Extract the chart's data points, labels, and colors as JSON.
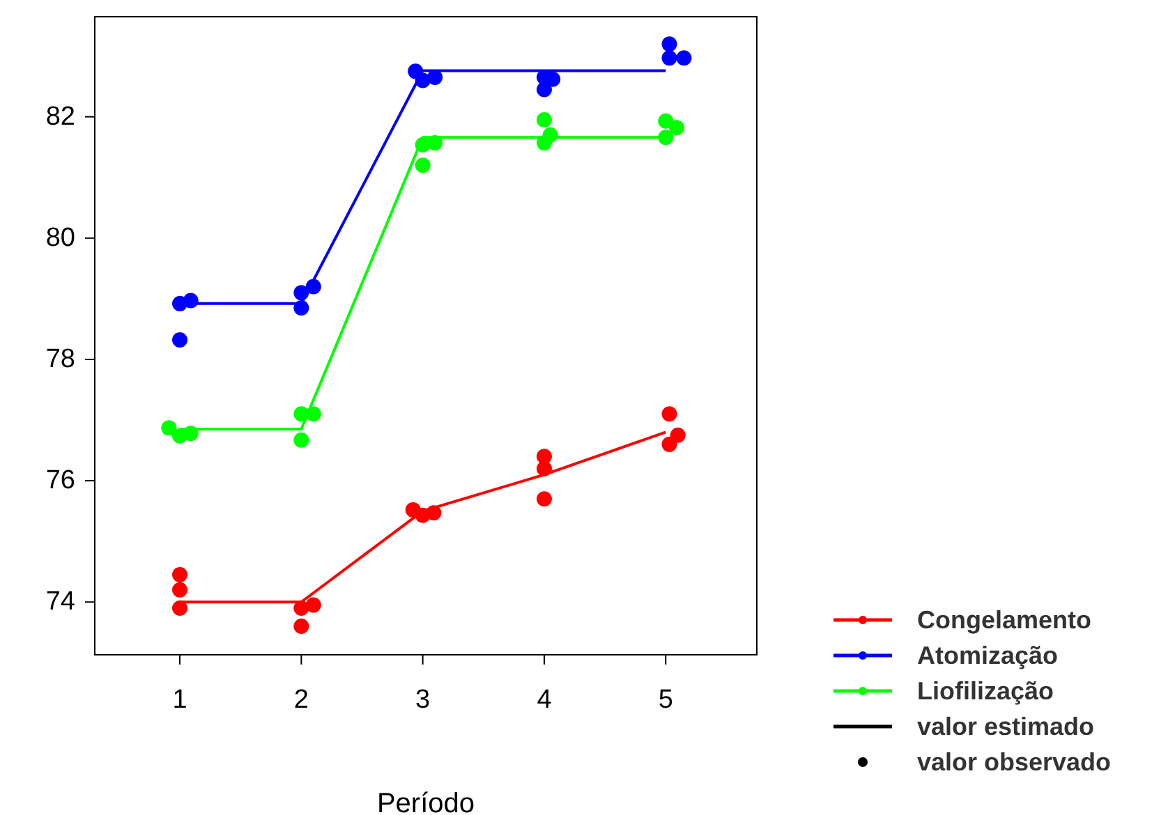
{
  "chart_data": {
    "type": "line",
    "xlabel": "Período",
    "xlim": [
      0.3,
      5.75
    ],
    "xticks": [
      1,
      2,
      3,
      4,
      5
    ],
    "ylim": [
      73.13,
      83.65
    ],
    "yticks": [
      74,
      76,
      78,
      80,
      82
    ],
    "grid": false,
    "legend": "bottom right",
    "annotations": [
      "valor estimado",
      "valor observado"
    ],
    "series": [
      {
        "name": "Congelamento",
        "color": "#ff0000",
        "marker": "none",
        "x": [
          1,
          2,
          3,
          4,
          5
        ],
        "values": [
          74.0,
          74.0,
          75.5,
          76.1,
          76.8
        ]
      },
      {
        "name": "Atomização",
        "color": "#0000ff",
        "marker": "none",
        "x": [
          1,
          2,
          3,
          4,
          5
        ],
        "values": [
          78.92,
          78.92,
          82.76,
          82.76,
          82.76
        ]
      },
      {
        "name": "Liofilização",
        "color": "#00ff00",
        "marker": "none",
        "x": [
          1,
          2,
          3,
          4,
          5
        ],
        "values": [
          76.85,
          76.85,
          81.66,
          81.66,
          81.66
        ]
      },
      {
        "color": "#ff0000",
        "type": "scatter",
        "marker": "circle",
        "x": [
          1,
          1,
          1,
          2,
          2.1,
          2,
          2.92,
          3,
          3.09,
          4,
          4,
          4,
          5.03,
          5.1,
          5.03
        ],
        "values": [
          74.45,
          74.2,
          73.9,
          73.9,
          73.95,
          73.6,
          75.52,
          75.43,
          75.47,
          76.4,
          76.2,
          75.7,
          77.1,
          76.75,
          76.6
        ]
      },
      {
        "color": "#0000ff",
        "type": "scatter",
        "marker": "circle",
        "x": [
          1,
          1.09,
          1,
          2,
          2,
          2.1,
          2.94,
          3,
          3.1,
          4,
          4,
          4.07,
          5.03,
          5.03,
          5.15
        ],
        "values": [
          78.92,
          78.97,
          78.32,
          78.85,
          79.1,
          79.2,
          82.75,
          82.6,
          82.65,
          82.65,
          82.45,
          82.62,
          83.2,
          82.97,
          82.97
        ]
      },
      {
        "color": "#00ff00",
        "type": "scatter",
        "marker": "circle",
        "x": [
          0.91,
          1,
          1.09,
          2,
          2.1,
          2,
          3,
          3.1,
          3,
          4,
          4.05,
          4,
          5,
          5.09,
          5
        ],
        "values": [
          76.87,
          76.74,
          76.78,
          77.1,
          77.1,
          76.67,
          81.54,
          81.57,
          81.2,
          81.95,
          81.7,
          81.57,
          81.93,
          81.82,
          81.66
        ]
      }
    ]
  }
}
